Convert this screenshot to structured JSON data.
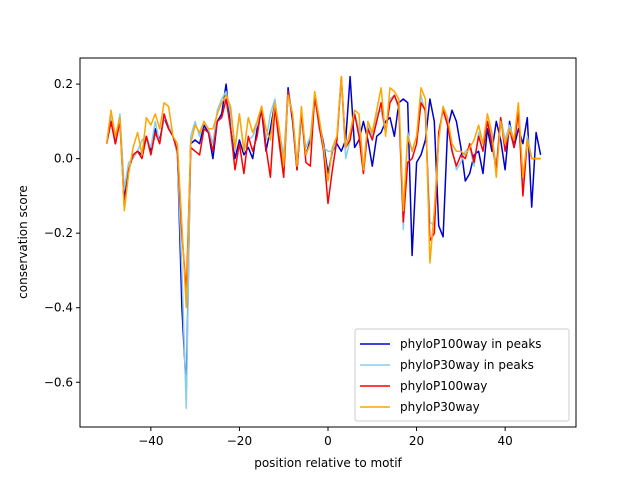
{
  "chart_data": {
    "type": "line",
    "title": "",
    "xlabel": "position relative to motif",
    "ylabel": "conservation score",
    "xlim": [
      -56,
      56
    ],
    "ylim": [
      -0.72,
      0.27
    ],
    "xticks": [
      -40,
      -20,
      0,
      20,
      40
    ],
    "xtick_labels": [
      "−40",
      "−20",
      "0",
      "20",
      "40"
    ],
    "yticks": [
      -0.6,
      -0.4,
      -0.2,
      0.0,
      0.2
    ],
    "ytick_labels": [
      "−0.6",
      "−0.4",
      "−0.2",
      "0.0",
      "0.2"
    ],
    "grid": false,
    "legend_position": "lower-right",
    "x_start": -50,
    "series": [
      {
        "name": "phyloP100way in peaks",
        "color": "#0000cd",
        "values": [
          0.04,
          0.1,
          0.04,
          0.11,
          -0.11,
          -0.03,
          0.01,
          0.02,
          0.01,
          0.06,
          0.02,
          0.08,
          0.05,
          0.11,
          0.08,
          0.06,
          0.02,
          -0.4,
          -0.62,
          0.04,
          0.05,
          0.04,
          0.09,
          0.07,
          0.0,
          0.1,
          0.12,
          0.2,
          0.08,
          0.0,
          0.05,
          0.01,
          0.03,
          0.0,
          0.08,
          0.13,
          0.02,
          0.08,
          0.15,
          0.05,
          -0.02,
          0.19,
          0.1,
          -0.03,
          0.12,
          0.01,
          0.05,
          0.16,
          0.1,
          0.04,
          -0.04,
          0.02,
          0.04,
          0.02,
          0.05,
          0.22,
          0.03,
          0.05,
          0.1,
          0.05,
          -0.02,
          0.06,
          0.07,
          0.1,
          0.11,
          0.06,
          0.15,
          0.16,
          0.15,
          -0.26,
          -0.01,
          0.01,
          0.05,
          0.16,
          0.1,
          -0.18,
          -0.21,
          0.08,
          0.13,
          0.1,
          0.03,
          -0.06,
          -0.04,
          0.01,
          0.02,
          -0.04,
          0.08,
          0.02,
          0.1,
          0.05,
          -0.03,
          0.1,
          0.03,
          0.08,
          0.04,
          0.11,
          -0.13,
          0.07,
          0.01
        ]
      },
      {
        "name": "phyloP30way in peaks",
        "color": "#87ceeb",
        "values": [
          0.04,
          0.12,
          0.05,
          0.12,
          -0.08,
          -0.01,
          0.0,
          0.02,
          0.05,
          0.06,
          0.03,
          0.1,
          0.04,
          0.11,
          0.09,
          0.06,
          0.01,
          -0.3,
          -0.67,
          0.06,
          0.1,
          0.06,
          0.1,
          0.08,
          0.04,
          0.13,
          0.16,
          0.18,
          0.12,
          0.02,
          0.12,
          0.02,
          0.05,
          0.06,
          0.09,
          0.14,
          0.05,
          0.12,
          0.16,
          0.07,
          0.01,
          0.18,
          0.12,
          -0.01,
          0.1,
          0.03,
          0.06,
          0.17,
          0.08,
          0.03,
          0.02,
          0.02,
          0.05,
          0.21,
          0.0,
          0.05,
          0.12,
          0.08,
          -0.03,
          0.09,
          0.06,
          0.12,
          0.13,
          0.07,
          0.16,
          0.17,
          0.13,
          -0.19,
          0.07,
          0.02,
          0.06,
          0.17,
          0.12,
          -0.17,
          -0.18,
          0.06,
          0.14,
          0.1,
          0.03,
          -0.03,
          -0.01,
          0.02,
          0.03,
          -0.02,
          0.07,
          0.04,
          0.1,
          0.06,
          -0.02,
          0.11,
          0.05,
          0.09,
          0.05,
          0.13,
          -0.08,
          0.06,
          0.0,
          0.0,
          0.0
        ]
      },
      {
        "name": "phyloP100way",
        "color": "#ff0000",
        "values": [
          0.04,
          0.1,
          0.04,
          0.1,
          -0.13,
          -0.03,
          0.01,
          0.02,
          0.0,
          0.06,
          0.01,
          0.07,
          0.04,
          0.12,
          0.08,
          0.06,
          0.02,
          -0.2,
          -0.36,
          0.03,
          0.02,
          0.01,
          0.08,
          0.07,
          0.02,
          0.1,
          0.11,
          0.16,
          0.08,
          -0.03,
          0.04,
          -0.04,
          0.06,
          0.02,
          0.06,
          0.14,
          0.03,
          -0.05,
          0.14,
          0.04,
          -0.05,
          0.18,
          0.11,
          -0.03,
          0.13,
          -0.01,
          -0.02,
          0.17,
          0.09,
          0.02,
          -0.12,
          -0.03,
          0.05,
          0.22,
          0.03,
          0.05,
          0.12,
          0.06,
          -0.04,
          0.08,
          0.05,
          0.1,
          0.15,
          0.07,
          0.15,
          0.17,
          0.14,
          -0.17,
          -0.01,
          0.0,
          0.04,
          0.15,
          0.13,
          -0.22,
          -0.2,
          0.07,
          0.13,
          0.09,
          0.02,
          -0.02,
          0.01,
          0.0,
          0.04,
          -0.01,
          0.06,
          0.02,
          0.1,
          0.04,
          -0.03,
          0.11,
          0.02,
          0.08,
          0.03,
          0.13,
          -0.1,
          0.05,
          0.0,
          0.0,
          0.0
        ]
      },
      {
        "name": "phyloP30way",
        "color": "#ffa500",
        "values": [
          0.04,
          0.13,
          0.06,
          0.11,
          -0.14,
          -0.04,
          0.03,
          0.07,
          0.01,
          0.11,
          0.09,
          0.12,
          0.08,
          0.15,
          0.14,
          0.06,
          0.04,
          -0.18,
          -0.4,
          0.04,
          0.09,
          0.07,
          0.1,
          0.08,
          0.08,
          0.12,
          0.15,
          0.17,
          0.14,
          0.03,
          0.12,
          0.02,
          0.11,
          0.07,
          0.1,
          0.14,
          0.08,
          0.05,
          0.15,
          0.08,
          -0.02,
          0.17,
          0.12,
          -0.02,
          0.14,
          0.01,
          0.04,
          0.18,
          0.11,
          0.03,
          -0.06,
          0.03,
          0.06,
          0.22,
          0.03,
          0.07,
          0.13,
          0.12,
          -0.03,
          0.1,
          0.07,
          0.13,
          0.19,
          0.06,
          0.19,
          0.18,
          0.16,
          -0.14,
          0.06,
          0.02,
          0.06,
          0.19,
          0.16,
          -0.28,
          -0.14,
          0.05,
          0.14,
          0.11,
          0.04,
          0.02,
          0.02,
          0.01,
          0.03,
          0.05,
          0.09,
          0.04,
          0.12,
          0.07,
          -0.05,
          0.1,
          0.04,
          0.08,
          0.05,
          0.15,
          -0.05,
          0.05,
          0.0,
          0.0,
          0.0
        ]
      }
    ]
  }
}
